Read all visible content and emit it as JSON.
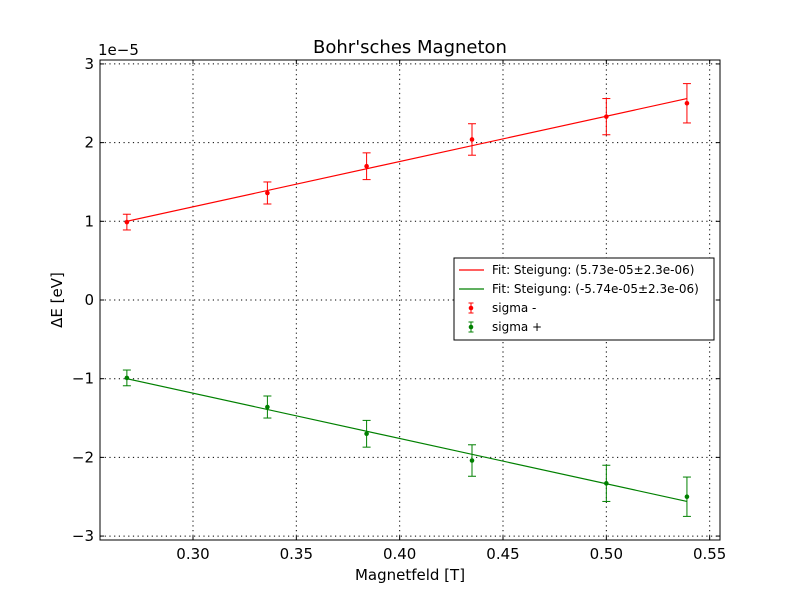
{
  "chart_data": {
    "type": "scatter",
    "title": "Bohr'sches Magneton",
    "xlabel": "Magnetfeld [T]",
    "ylabel": "ΔE [eV]",
    "offset_label": "1e−5",
    "xlim": [
      0.255,
      0.555
    ],
    "ylim": [
      -3.05,
      3.05
    ],
    "y_multiplier": 1e-05,
    "grid": true,
    "legend_position": "center-right",
    "xticks": [
      0.3,
      0.35,
      0.4,
      0.45,
      0.5,
      0.55
    ],
    "xtick_labels": [
      "0.30",
      "0.35",
      "0.40",
      "0.45",
      "0.50",
      "0.55"
    ],
    "yticks": [
      -3,
      -2,
      -1,
      0,
      1,
      2,
      3
    ],
    "ytick_labels": [
      "−3",
      "−2",
      "−1",
      "0",
      "1",
      "2",
      "3"
    ],
    "series": [
      {
        "name": "sigma -",
        "kind": "errorbar",
        "color": "#ff0000",
        "x": [
          0.268,
          0.336,
          0.384,
          0.435,
          0.5,
          0.539
        ],
        "y": [
          0.99,
          1.36,
          1.7,
          2.04,
          2.33,
          2.5
        ],
        "yerr": [
          0.1,
          0.14,
          0.17,
          0.2,
          0.23,
          0.25
        ]
      },
      {
        "name": "sigma +",
        "kind": "errorbar",
        "color": "#008000",
        "x": [
          0.268,
          0.336,
          0.384,
          0.435,
          0.5,
          0.539
        ],
        "y": [
          -0.99,
          -1.36,
          -1.7,
          -2.04,
          -2.33,
          -2.5
        ],
        "yerr": [
          0.1,
          0.14,
          0.17,
          0.2,
          0.23,
          0.25
        ]
      },
      {
        "name": "Fit: Steigung: (5.73e-05±2.3e-06)",
        "kind": "line",
        "color": "#ff0000",
        "x": [
          0.268,
          0.539
        ],
        "y": [
          1.0,
          2.56
        ]
      },
      {
        "name": "Fit: Steigung: (-5.74e-05±2.3e-06)",
        "kind": "line",
        "color": "#008000",
        "x": [
          0.268,
          0.539
        ],
        "y": [
          -1.0,
          -2.56
        ]
      }
    ],
    "legend": [
      {
        "label": "Fit: Steigung: (5.73e-05±2.3e-06)",
        "kind": "line",
        "color": "#ff0000"
      },
      {
        "label": "Fit: Steigung: (-5.74e-05±2.3e-06)",
        "kind": "line",
        "color": "#008000"
      },
      {
        "label": "sigma -",
        "kind": "errorbar",
        "color": "#ff0000"
      },
      {
        "label": "sigma +",
        "kind": "errorbar",
        "color": "#008000"
      }
    ]
  }
}
